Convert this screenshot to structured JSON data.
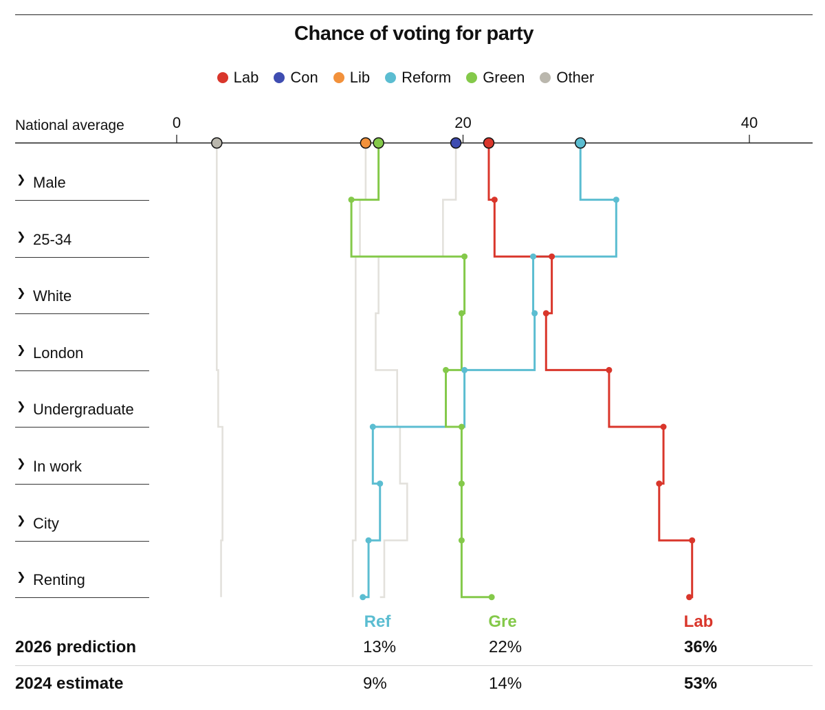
{
  "title": "Chance of voting for party",
  "legend": [
    {
      "label": "Lab",
      "color": "#d9362b"
    },
    {
      "label": "Con",
      "color": "#3f4db1"
    },
    {
      "label": "Lib",
      "color": "#f2913b"
    },
    {
      "label": "Reform",
      "color": "#5bbdd1"
    },
    {
      "label": "Green",
      "color": "#84c94a"
    },
    {
      "label": "Other",
      "color": "#bab7ad"
    }
  ],
  "national_label": "National average",
  "rows": [
    "Male",
    "25-34",
    "White",
    "London",
    "Undergraduate",
    "In work",
    "City",
    "Renting"
  ],
  "chart_data": {
    "type": "line",
    "title": "Chance of voting for party",
    "xlabel": "",
    "xlim": [
      -12,
      44.5
    ],
    "xticks": [
      0,
      20,
      40
    ],
    "xtick_labels": [
      "0",
      "20",
      "40"
    ],
    "categories": [
      "National average",
      "Male",
      "25-34",
      "White",
      "London",
      "Undergraduate",
      "In work",
      "City",
      "Renting"
    ],
    "series": [
      {
        "name": "Other",
        "color": "#bab7ad",
        "values": [
          2.8,
          2.8,
          2.8,
          2.8,
          2.9,
          3.2,
          3.2,
          3.1,
          3.1
        ],
        "emphasis": false
      },
      {
        "name": "Lib",
        "color": "#f2913b",
        "values": [
          13.2,
          12.8,
          12.5,
          12.5,
          12.5,
          12.5,
          12.5,
          12.3,
          12.3
        ],
        "emphasis": false
      },
      {
        "name": "Con",
        "color": "#3f4db1",
        "values": [
          19.5,
          18.6,
          14.1,
          13.9,
          15.4,
          15.6,
          16.1,
          14.5,
          14.2
        ],
        "emphasis": false
      },
      {
        "name": "Reform",
        "color": "#5bbdd1",
        "values": [
          28.2,
          30.7,
          24.9,
          25.0,
          20.1,
          13.7,
          14.2,
          13.4,
          13.0
        ],
        "emphasis": true
      },
      {
        "name": "Green",
        "color": "#84c94a",
        "values": [
          14.1,
          12.2,
          20.1,
          19.9,
          18.8,
          19.9,
          19.9,
          19.9,
          22.0
        ],
        "emphasis": true
      },
      {
        "name": "Lab",
        "color": "#d9362b",
        "values": [
          21.8,
          22.2,
          26.2,
          25.8,
          30.2,
          34.0,
          33.7,
          36.0,
          35.8
        ],
        "emphasis": true
      }
    ],
    "end_labels": [
      {
        "name": "Ref",
        "color": "#5bbdd1"
      },
      {
        "name": "Gre",
        "color": "#84c94a"
      },
      {
        "name": "Lab",
        "color": "#d9362b"
      }
    ]
  },
  "table": {
    "rows": [
      {
        "label": "2026 prediction",
        "ref": "13%",
        "gre": "22%",
        "lab": "36%"
      },
      {
        "label": "2024 estimate",
        "ref": "9%",
        "gre": "14%",
        "lab": "53%"
      }
    ]
  }
}
